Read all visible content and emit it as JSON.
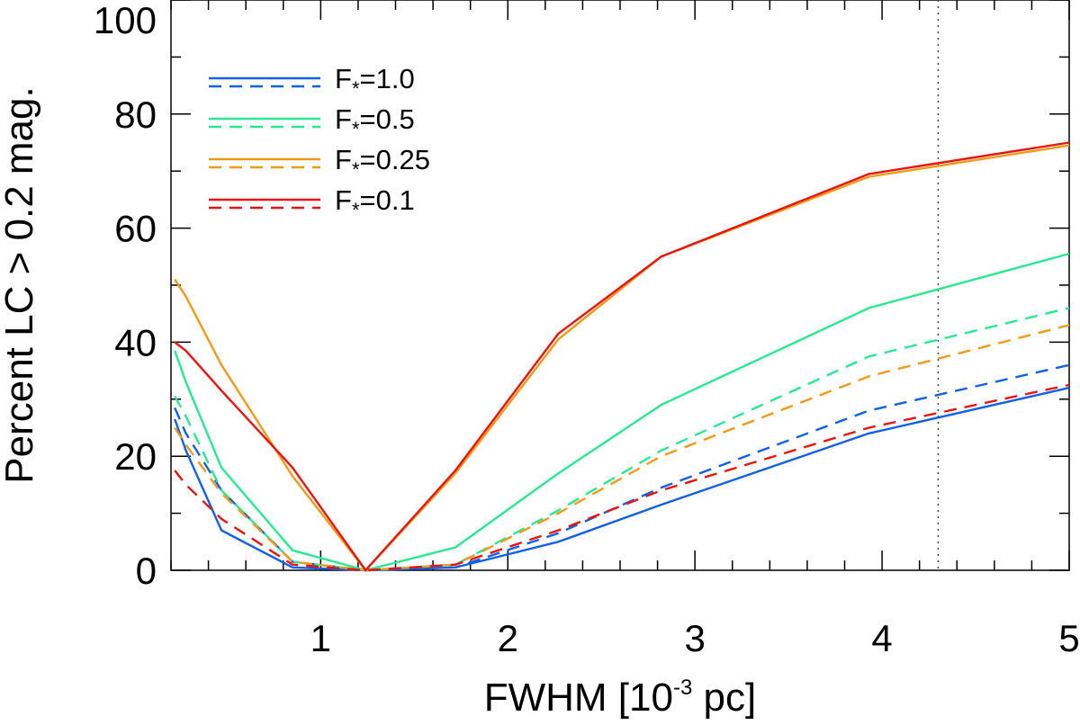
{
  "chart_data": {
    "type": "line",
    "title": "",
    "xlabel": "FWHM [10",
    "xlabel_exponent": "-3",
    "xlabel_suffix": " pc]",
    "ylabel": "Percent LC > 0.2 mag.",
    "xlim": [
      0.2,
      5.0
    ],
    "ylim": [
      0,
      100
    ],
    "grid": false,
    "legend_position": "top-left",
    "x_major_ticks": [
      1,
      2,
      3,
      4,
      5
    ],
    "x_minor_step": 0.2,
    "y_major_ticks": [
      0,
      20,
      40,
      60,
      80,
      100
    ],
    "y_minor_step": 10,
    "x_tick_labels": [
      "1",
      "2",
      "3",
      "4",
      "5"
    ],
    "y_tick_labels": [
      "0",
      "20",
      "40",
      "60",
      "80",
      "100"
    ],
    "reference_line_x": 4.3,
    "legend_entries": [
      {
        "label": "F*=1.0",
        "sub": "*",
        "text": "=1.0",
        "color": "#1060E8"
      },
      {
        "label": "F*=0.5",
        "sub": "*",
        "text": "=0.5",
        "color": "#2AE890"
      },
      {
        "label": "F*=0.25",
        "sub": "*",
        "text": "=0.25",
        "color": "#F09A1A"
      },
      {
        "label": "F*=0.1",
        "sub": "*",
        "text": "=0.1",
        "color": "#E8140E"
      }
    ],
    "series": [
      {
        "name": "F*=1.0 solid",
        "style": "solid",
        "color": "#1060E8",
        "x": [
          0.22,
          0.28,
          0.47,
          0.85,
          1.24,
          1.72,
          2.27,
          2.82,
          3.93,
          5.0
        ],
        "y": [
          26.5,
          21,
          7,
          0.5,
          0,
          0.5,
          5,
          11.5,
          24,
          32
        ]
      },
      {
        "name": "F*=1.0 dashed",
        "style": "dashed",
        "color": "#1060E8",
        "x": [
          0.22,
          0.28,
          0.47,
          0.85,
          1.24,
          1.72,
          2.27,
          2.82,
          3.93,
          5.0
        ],
        "y": [
          28.5,
          24,
          14,
          1.5,
          0,
          0.5,
          6.5,
          14.5,
          28,
          36
        ]
      },
      {
        "name": "F*=0.5 solid",
        "style": "solid",
        "color": "#2AE890",
        "x": [
          0.22,
          0.28,
          0.47,
          0.85,
          1.24,
          1.72,
          2.27,
          2.82,
          3.93,
          5.0
        ],
        "y": [
          38.5,
          33,
          18,
          3.5,
          0,
          4,
          17,
          29,
          46,
          55.5
        ]
      },
      {
        "name": "F*=0.5 dashed",
        "style": "dashed",
        "color": "#2AE890",
        "x": [
          0.22,
          0.28,
          0.47,
          0.85,
          1.24,
          1.72,
          2.27,
          2.82,
          3.93,
          5.0
        ],
        "y": [
          30.5,
          27,
          14,
          1.5,
          0,
          1,
          10.5,
          21,
          37.5,
          46
        ]
      },
      {
        "name": "F*=0.25 solid",
        "style": "solid",
        "color": "#F09A1A",
        "x": [
          0.22,
          0.28,
          0.47,
          0.85,
          1.24,
          1.72,
          2.27,
          2.82,
          3.93,
          5.0
        ],
        "y": [
          51,
          48,
          36,
          16.5,
          0,
          17,
          40.5,
          55,
          69,
          74.5
        ]
      },
      {
        "name": "F*=0.25 dashed",
        "style": "dashed",
        "color": "#F09A1A",
        "x": [
          0.22,
          0.28,
          0.47,
          0.85,
          1.24,
          1.72,
          2.27,
          2.82,
          3.93,
          5.0
        ],
        "y": [
          25,
          22,
          13.5,
          1.5,
          0,
          1,
          10,
          20,
          34,
          43
        ]
      },
      {
        "name": "F*=0.1 solid",
        "style": "solid",
        "color": "#E8140E",
        "x": [
          0.22,
          0.28,
          0.47,
          0.85,
          1.24,
          1.72,
          2.27,
          2.82,
          3.93,
          5.0
        ],
        "y": [
          40,
          38.5,
          31.5,
          18,
          0,
          17.5,
          41.5,
          55,
          69.5,
          75
        ]
      },
      {
        "name": "F*=0.1 dashed",
        "style": "dashed",
        "color": "#E8140E",
        "x": [
          0.22,
          0.28,
          0.47,
          0.85,
          1.24,
          1.72,
          2.27,
          2.82,
          3.93,
          5.0
        ],
        "y": [
          17.5,
          15,
          9,
          1,
          0,
          1,
          7,
          14,
          25,
          32.5
        ]
      }
    ]
  }
}
